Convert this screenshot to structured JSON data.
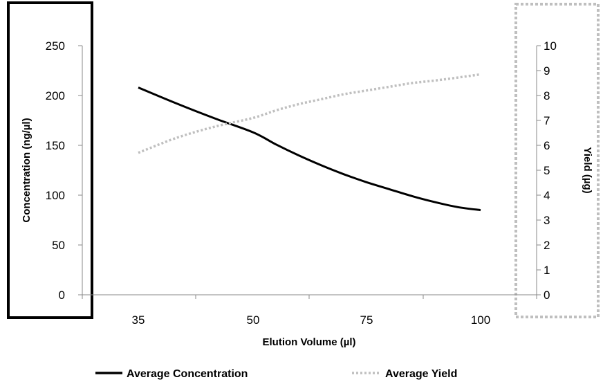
{
  "chart_data": {
    "type": "line",
    "x": [
      35,
      50,
      75,
      100
    ],
    "x_tick_labels": [
      "35",
      "50",
      "75",
      "100"
    ],
    "xlabel": "Elution Volume (µl)",
    "ylabel_left": "Concentration (ng/µl)",
    "ylabel_right": "Yield (µg)",
    "ylim_left": [
      0,
      250
    ],
    "ylim_right": [
      0,
      10
    ],
    "y_ticks_left": [
      "0",
      "50",
      "100",
      "150",
      "200",
      "250"
    ],
    "y_ticks_right": [
      "0",
      "1",
      "2",
      "3",
      "4",
      "5",
      "6",
      "7",
      "8",
      "9",
      "10"
    ],
    "grid": false,
    "legend_position": "bottom",
    "series": [
      {
        "name": "Average Concentration",
        "axis": "left",
        "color": "#000000",
        "dash": "solid",
        "x": [
          35,
          40,
          45,
          50,
          55,
          60,
          65,
          70,
          75,
          80,
          85,
          90,
          95,
          100
        ],
        "values": [
          208,
          192,
          177,
          163,
          151,
          140,
          130,
          121,
          113,
          106,
          99,
          93,
          88,
          85
        ]
      },
      {
        "name": "Average Yield",
        "axis": "right",
        "color": "#bfbfbf",
        "dash": "dotted",
        "x": [
          35,
          40,
          45,
          50,
          55,
          60,
          65,
          70,
          75,
          80,
          85,
          90,
          95,
          100
        ],
        "values": [
          5.7,
          6.3,
          6.75,
          7.1,
          7.4,
          7.65,
          7.85,
          8.05,
          8.2,
          8.35,
          8.5,
          8.6,
          8.72,
          8.85
        ]
      }
    ],
    "annotations": [
      {
        "type": "box",
        "target": "left-axis",
        "style": "solid",
        "color": "#000000"
      },
      {
        "type": "box",
        "target": "right-axis",
        "style": "dotted",
        "color": "#bfbfbf"
      }
    ]
  }
}
